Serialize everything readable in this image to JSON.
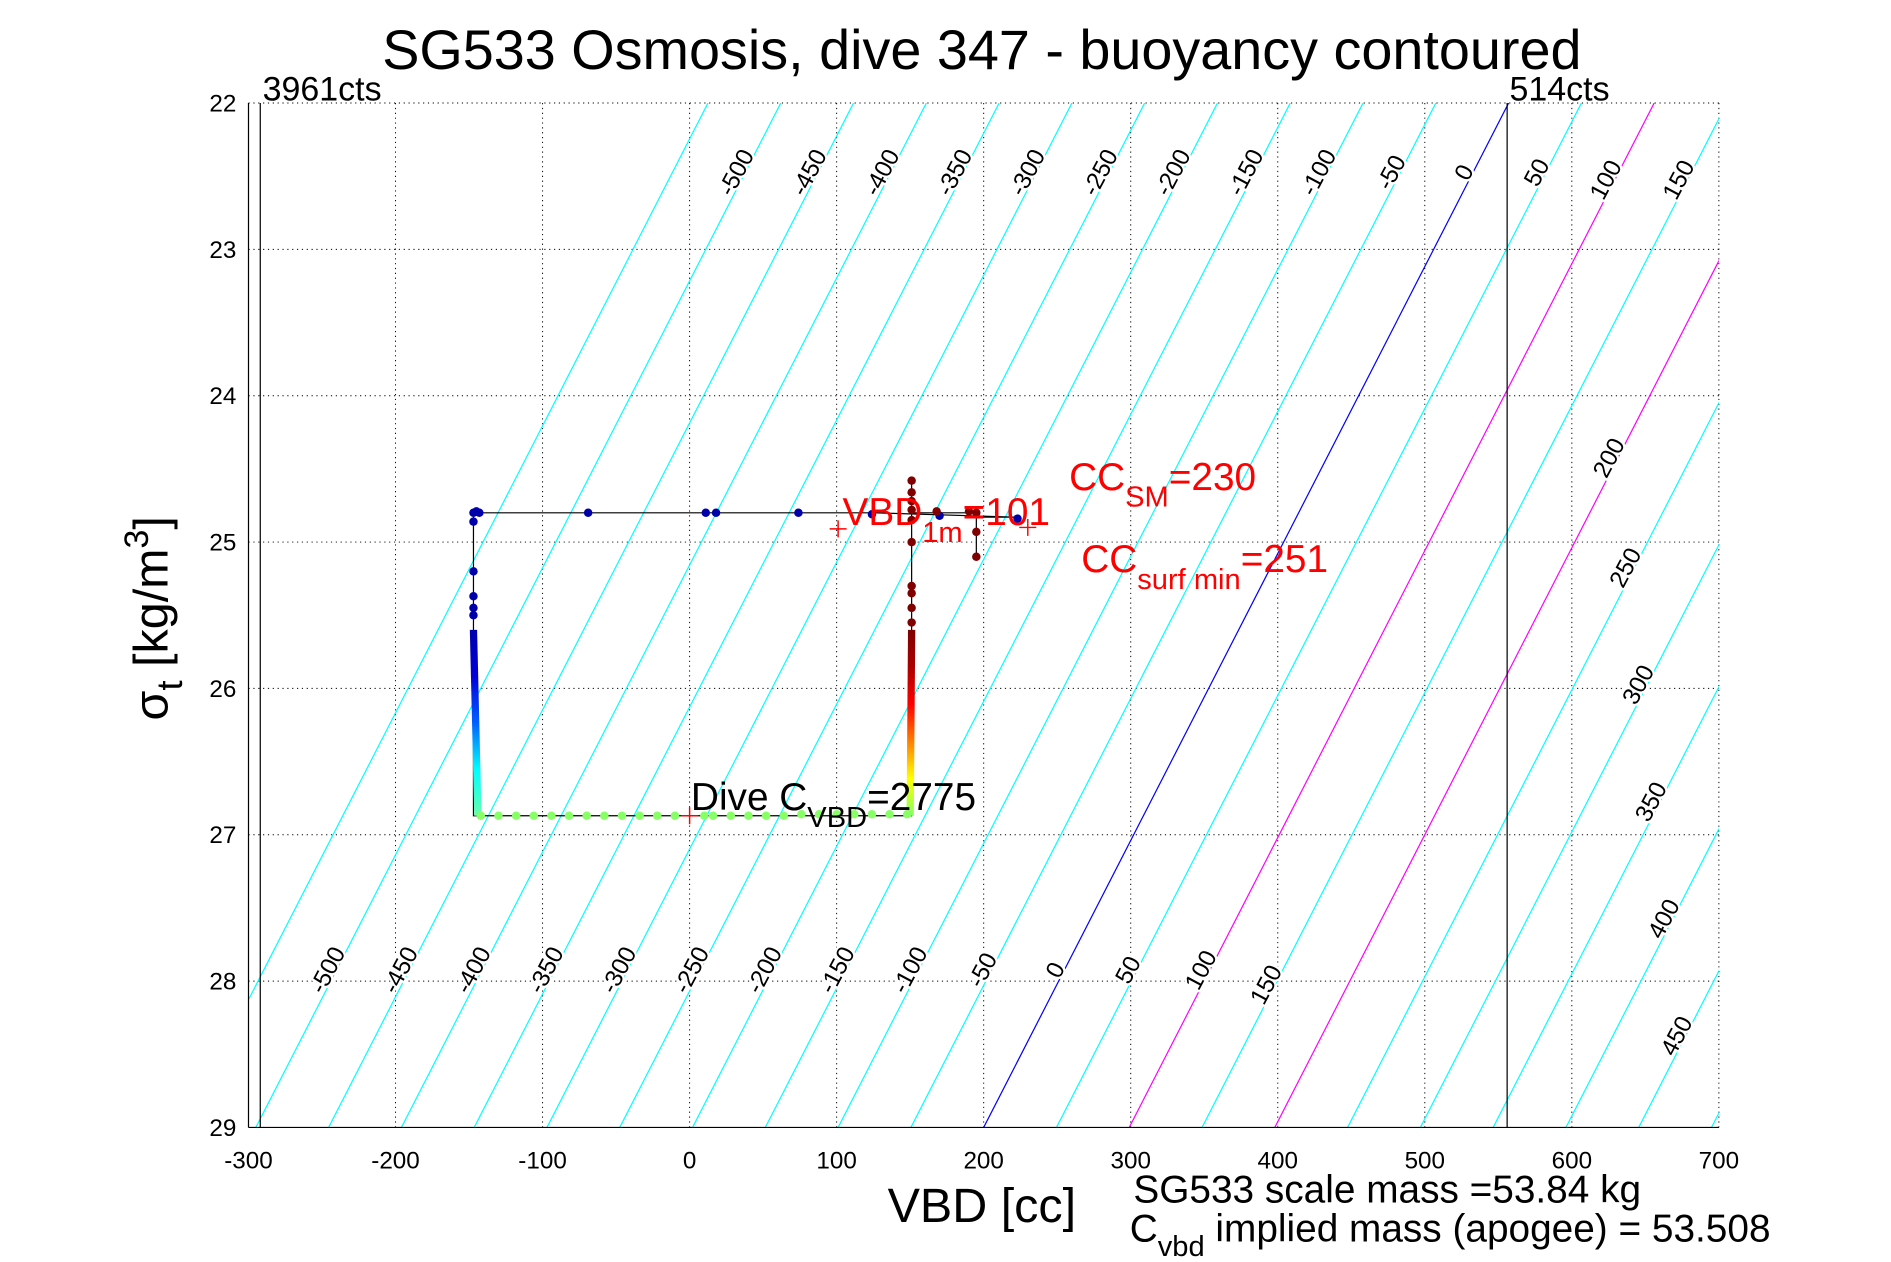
{
  "chart_data": {
    "type": "scatter",
    "title": "SG533 Osmosis, dive 347 - buoyancy contoured",
    "xlabel": "VBD [cc]",
    "ylabel_main": "σ",
    "ylabel_sub": "t",
    "ylabel_units": " [kg/m",
    "ylabel_sup": "3",
    "ylabel_close": "]",
    "xlim": [
      -300,
      700
    ],
    "ylim": [
      22,
      29
    ],
    "y_reversed": true,
    "grid": true,
    "xticks": [
      -300,
      -200,
      -100,
      0,
      100,
      200,
      300,
      400,
      500,
      600,
      700
    ],
    "yticks": [
      22,
      23,
      24,
      25,
      26,
      27,
      28,
      29
    ],
    "count_markers": [
      {
        "label": "3961cts",
        "vbd": -292
      },
      {
        "label": "514cts",
        "vbd": 556
      }
    ],
    "contours": {
      "values": [
        -550,
        -500,
        -450,
        -400,
        -350,
        -300,
        -250,
        -200,
        -150,
        -100,
        -50,
        0,
        50,
        100,
        150,
        200,
        250,
        300,
        350,
        400,
        450,
        500,
        550,
        600
      ],
      "zero_color": "#0000ff",
      "highlight_values": [
        100,
        200
      ],
      "highlight_color": "#ff00ff",
      "default_color": "#00ffff",
      "top_labels": [
        "-500",
        "-450",
        "-400",
        "-350",
        "-300",
        "-250",
        "-200",
        "-150",
        "-100",
        "-50",
        "0",
        "50",
        "100",
        "150"
      ],
      "bottom_labels": [
        "-500",
        "-450",
        "-400",
        "-350",
        "-300",
        "-250",
        "-200",
        "-150",
        "-100",
        "-50",
        "0",
        "50",
        "100",
        "150"
      ],
      "right_labels": [
        {
          "value": "200",
          "sigma": 24.45
        },
        {
          "value": "250",
          "sigma": 25.2
        },
        {
          "value": "300",
          "sigma": 26.0
        },
        {
          "value": "350",
          "sigma": 26.8
        },
        {
          "value": "400",
          "sigma": 27.6
        },
        {
          "value": "450",
          "sigma": 28.4
        }
      ]
    },
    "trace_line": [
      [
        -147,
        24.8
      ],
      [
        -147,
        26.87
      ],
      [
        151,
        26.87
      ],
      [
        151,
        24.58
      ],
      [
        151,
        24.8
      ],
      [
        170,
        24.8
      ],
      [
        195,
        24.8
      ],
      [
        195,
        25.1
      ],
      [
        195,
        24.83
      ],
      [
        223,
        24.83
      ],
      [
        125,
        24.8
      ],
      [
        -147,
        24.8
      ]
    ],
    "points": [
      [
        -147,
        24.8,
        "#0000aa"
      ],
      [
        -145,
        24.79,
        "#0000aa"
      ],
      [
        -143,
        24.8,
        "#0000aa"
      ],
      [
        -147,
        24.86,
        "#0000aa"
      ],
      [
        -147,
        25.2,
        "#0000aa"
      ],
      [
        -147,
        25.37,
        "#0000aa"
      ],
      [
        -147,
        25.45,
        "#0000aa"
      ],
      [
        -147,
        25.5,
        "#0000aa"
      ],
      [
        -69,
        24.8,
        "#0000aa"
      ],
      [
        11,
        24.8,
        "#0000aa"
      ],
      [
        18,
        24.8,
        "#0000aa"
      ],
      [
        74,
        24.8,
        "#0000aa"
      ],
      [
        124,
        24.81,
        "#0000aa"
      ],
      [
        170,
        24.82,
        "#0000aa"
      ],
      [
        223,
        24.84,
        "#0000aa"
      ],
      [
        168,
        24.79,
        "#800000"
      ],
      [
        190,
        24.79,
        "#800000"
      ],
      [
        195,
        24.8,
        "#800000"
      ],
      [
        195,
        24.93,
        "#800000"
      ],
      [
        195,
        25.1,
        "#800000"
      ],
      [
        151,
        24.58,
        "#800000"
      ],
      [
        151,
        24.66,
        "#800000"
      ],
      [
        151,
        24.72,
        "#800000"
      ],
      [
        151,
        24.78,
        "#800000"
      ],
      [
        151,
        24.85,
        "#800000"
      ],
      [
        151,
        25.0,
        "#800000"
      ],
      [
        151,
        25.3,
        "#800000"
      ],
      [
        151,
        25.35,
        "#800000"
      ],
      [
        151,
        25.45,
        "#800000"
      ],
      [
        151,
        25.55,
        "#800000"
      ],
      [
        -142,
        26.87,
        "#88ff66"
      ],
      [
        -130,
        26.87,
        "#88ff66"
      ],
      [
        -118,
        26.87,
        "#88ff66"
      ],
      [
        -106,
        26.87,
        "#88ff66"
      ],
      [
        -94,
        26.87,
        "#88ff66"
      ],
      [
        -82,
        26.87,
        "#88ff66"
      ],
      [
        -70,
        26.87,
        "#88ff66"
      ],
      [
        -58,
        26.87,
        "#88ff66"
      ],
      [
        -46,
        26.87,
        "#88ff66"
      ],
      [
        -34,
        26.87,
        "#88ff66"
      ],
      [
        -22,
        26.87,
        "#88ff66"
      ],
      [
        -10,
        26.87,
        "#88ff66"
      ],
      [
        10,
        26.87,
        "#88ff66"
      ],
      [
        16,
        26.87,
        "#88ff66"
      ],
      [
        28,
        26.87,
        "#88ff66"
      ],
      [
        40,
        26.87,
        "#88ff66"
      ],
      [
        52,
        26.87,
        "#88ff66"
      ],
      [
        64,
        26.87,
        "#88ff66"
      ],
      [
        76,
        26.86,
        "#88ff66"
      ],
      [
        88,
        26.86,
        "#88ff66"
      ],
      [
        100,
        26.86,
        "#88ff66"
      ],
      [
        112,
        26.86,
        "#88ff66"
      ],
      [
        124,
        26.86,
        "#88ff66"
      ],
      [
        136,
        26.86,
        "#88ff66"
      ],
      [
        148,
        26.86,
        "#88ff66"
      ]
    ],
    "dense_columns": [
      {
        "name": "descent",
        "vbd_top": -147,
        "vbd_bottom": -144,
        "sigma_top": 25.6,
        "sigma_bottom": 26.87,
        "colors": [
          "#0000aa",
          "#0000dd",
          "#0060ff",
          "#00ffff",
          "#66ffaa"
        ]
      },
      {
        "name": "ascent",
        "vbd_top": 151,
        "vbd_bottom": 150,
        "sigma_top": 25.6,
        "sigma_bottom": 26.87,
        "colors": [
          "#800000",
          "#aa0000",
          "#ff0000",
          "#ff8000",
          "#ffff00",
          "#88ff66"
        ]
      }
    ],
    "annotations": [
      {
        "id": "vbd1m",
        "main": "VBD",
        "sub": "1m",
        "tail": "=101",
        "color": "#ff0000",
        "marker": [
          101,
          24.91
        ]
      },
      {
        "id": "ccsm",
        "main": "CC",
        "sub": "SM",
        "tail": "=230",
        "color": "#ff0000",
        "marker": [
          230,
          24.9
        ]
      },
      {
        "id": "ccsurf",
        "main": "CC",
        "sub": "surf min",
        "tail": "=251",
        "color": "#ff0000"
      },
      {
        "id": "divecvbd",
        "main": "Dive C",
        "sub": "VBD",
        "tail": "=2775",
        "color": "#000000",
        "marker": [
          0,
          26.87
        ]
      }
    ],
    "footer": {
      "scale_mass": "SG533 scale mass =53.84 kg",
      "implied_main": "C",
      "implied_sub": "vbd",
      "implied_tail": " implied mass (apogee) = 53.508"
    }
  }
}
